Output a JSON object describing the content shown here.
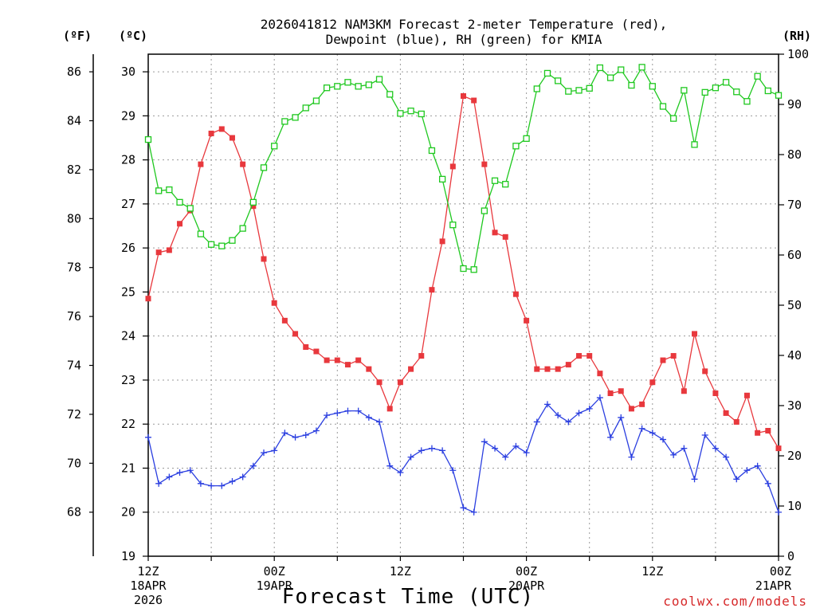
{
  "chart_data": {
    "type": "line",
    "title_lines": [
      "2026041812 NAM3KM Forecast 2-meter Temperature (red),",
      "Dewpoint (blue), RH (green) for KMIA"
    ],
    "xlabel": "Forecast Time (UTC)",
    "credit": "coolwx.com/models",
    "units": {
      "fahrenheit": "(ºF)",
      "celsius": "(ºC)",
      "rh": "(RH)"
    },
    "x_range_hours": [
      0,
      60
    ],
    "x_ticks": [
      {
        "hour": 0,
        "lines": [
          "12Z",
          "18APR",
          "2026"
        ]
      },
      {
        "hour": 12,
        "lines": [
          "00Z",
          "19APR"
        ]
      },
      {
        "hour": 24,
        "lines": [
          "12Z"
        ]
      },
      {
        "hour": 36,
        "lines": [
          "00Z",
          "20APR"
        ]
      },
      {
        "hour": 48,
        "lines": [
          "12Z"
        ]
      },
      {
        "hour": 60,
        "lines": [
          "00Z",
          "21APR"
        ]
      }
    ],
    "celsius_axis": {
      "range": [
        19,
        30.4
      ],
      "ticks": [
        19,
        20,
        21,
        22,
        23,
        24,
        25,
        26,
        27,
        28,
        29,
        30
      ]
    },
    "fahrenheit_axis": {
      "range": [
        66.2,
        86.72
      ],
      "ticks": [
        68,
        70,
        72,
        74,
        76,
        78,
        80,
        82,
        84,
        86
      ]
    },
    "rh_axis": {
      "range": [
        0,
        100
      ],
      "ticks": [
        0,
        10,
        20,
        30,
        40,
        50,
        60,
        70,
        80,
        90,
        100
      ]
    },
    "series": [
      {
        "name": "2-meter Temperature",
        "color": "#e8383d",
        "marker": "filled-square",
        "units": "C",
        "values": [
          24.85,
          25.9,
          25.95,
          26.55,
          26.85,
          27.9,
          28.6,
          28.7,
          28.5,
          27.9,
          26.95,
          25.75,
          24.75,
          24.35,
          24.05,
          23.75,
          23.65,
          23.45,
          23.45,
          23.35,
          23.45,
          23.25,
          22.95,
          22.35,
          22.95,
          23.25,
          23.55,
          25.05,
          26.15,
          27.85,
          29.45,
          29.35,
          27.9,
          26.35,
          26.25,
          24.95,
          24.35,
          23.25,
          23.25,
          23.25,
          23.35,
          23.55,
          23.55,
          23.15,
          22.7,
          22.75,
          22.35,
          22.45,
          22.95,
          23.45,
          23.55,
          22.75,
          24.05,
          23.2,
          22.7,
          22.25,
          22.05,
          22.65,
          21.8,
          21.85,
          21.45
        ]
      },
      {
        "name": "Dewpoint",
        "color": "#2b3fe0",
        "marker": "plus",
        "units": "C",
        "values": [
          21.7,
          20.65,
          20.8,
          20.9,
          20.95,
          20.65,
          20.6,
          20.6,
          20.7,
          20.8,
          21.05,
          21.35,
          21.4,
          21.8,
          21.7,
          21.75,
          21.85,
          22.2,
          22.25,
          22.3,
          22.3,
          22.15,
          22.05,
          21.05,
          20.9,
          21.25,
          21.4,
          21.45,
          21.4,
          20.95,
          20.1,
          20,
          21.6,
          21.45,
          21.25,
          21.5,
          21.35,
          22.05,
          22.45,
          22.2,
          22.05,
          22.25,
          22.35,
          22.6,
          21.7,
          22.15,
          21.25,
          21.9,
          21.8,
          21.65,
          21.3,
          21.45,
          20.75,
          21.75,
          21.45,
          21.25,
          20.75,
          20.95,
          21.05,
          20.65,
          20
        ]
      },
      {
        "name": "RH",
        "color": "#1fc81f",
        "marker": "open-square",
        "units": "%",
        "values": [
          83,
          72.8,
          73,
          70.5,
          69.3,
          64.2,
          62.1,
          61.8,
          62.9,
          65.3,
          70.5,
          77.4,
          81.7,
          86.6,
          87.4,
          89.3,
          90.7,
          93.3,
          93.6,
          94.4,
          93.6,
          93.9,
          95,
          92,
          88.2,
          88.7,
          88.1,
          80.8,
          75.1,
          66,
          57.3,
          57.1,
          68.8,
          74.8,
          74.1,
          81.7,
          83.2,
          93.1,
          96.2,
          94.7,
          92.6,
          92.8,
          93.2,
          97.3,
          95.3,
          96.9,
          93.8,
          97.4,
          93.6,
          89.6,
          87.2,
          92.8,
          82,
          92.4,
          93.3,
          94.4,
          92.5,
          90.6,
          95.6,
          92.7,
          91.8
        ]
      }
    ]
  }
}
